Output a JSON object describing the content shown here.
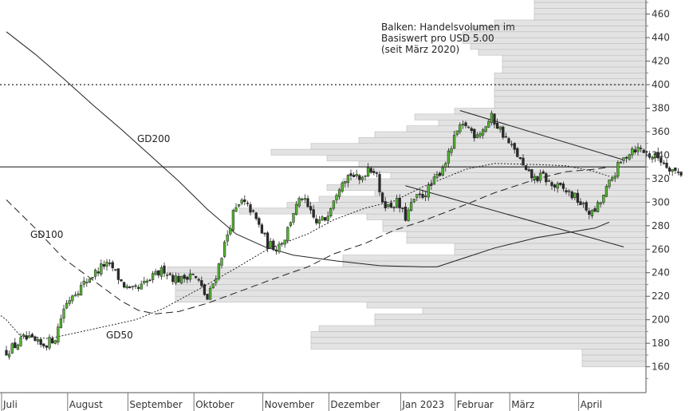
{
  "chart_data": {
    "type": "candlestick",
    "annotation_lines": [
      "Balken: Handelsvolumen im",
      "Basiswert pro USD 5.00",
      "(seit März 2020)"
    ],
    "y_axis": {
      "ticks": [
        160,
        180,
        200,
        220,
        240,
        260,
        280,
        300,
        320,
        340,
        360,
        380,
        400,
        420,
        440,
        460
      ],
      "side": "right",
      "ylim": [
        138,
        472
      ]
    },
    "x_axis": {
      "months": [
        "Juli",
        "August",
        "September",
        "Oktober",
        "November",
        "Dezember",
        "Jan 2023",
        "Februar",
        "März",
        "April"
      ],
      "month_start_days": [
        0,
        23,
        44,
        67,
        91,
        114,
        139,
        158,
        177,
        201
      ],
      "total_days": 215
    },
    "colors": {
      "up": "#55b531",
      "down": "#2b2b2b",
      "volume": "#e3e3e3",
      "volume_edge": "#bcbcbc",
      "line": "#222222"
    },
    "volume_profile": {
      "bucket_size": 5,
      "buckets": [
        [
          160,
          80
        ],
        [
          165,
          80
        ],
        [
          170,
          80
        ],
        [
          175,
          420
        ],
        [
          180,
          420
        ],
        [
          185,
          420
        ],
        [
          190,
          410
        ],
        [
          195,
          340
        ],
        [
          200,
          340
        ],
        [
          205,
          280
        ],
        [
          210,
          350
        ],
        [
          215,
          590
        ],
        [
          220,
          590
        ],
        [
          225,
          590
        ],
        [
          230,
          590
        ],
        [
          235,
          590
        ],
        [
          240,
          600
        ],
        [
          245,
          380
        ],
        [
          250,
          380
        ],
        [
          255,
          240
        ],
        [
          260,
          240
        ],
        [
          265,
          300
        ],
        [
          270,
          300
        ],
        [
          275,
          330
        ],
        [
          280,
          330
        ],
        [
          285,
          350
        ],
        [
          290,
          510
        ],
        [
          295,
          450
        ],
        [
          300,
          410
        ],
        [
          305,
          340
        ],
        [
          310,
          400
        ],
        [
          315,
          380
        ],
        [
          320,
          320
        ],
        [
          325,
          350
        ],
        [
          330,
          360
        ],
        [
          335,
          400
        ],
        [
          340,
          470
        ],
        [
          345,
          420
        ],
        [
          350,
          360
        ],
        [
          355,
          340
        ],
        [
          360,
          300
        ],
        [
          365,
          260
        ],
        [
          370,
          290
        ],
        [
          375,
          240
        ],
        [
          380,
          190
        ],
        [
          385,
          190
        ],
        [
          390,
          190
        ],
        [
          395,
          190
        ],
        [
          400,
          190
        ],
        [
          405,
          190
        ],
        [
          410,
          180
        ],
        [
          415,
          180
        ],
        [
          420,
          180
        ],
        [
          425,
          210
        ],
        [
          430,
          220
        ],
        [
          435,
          230
        ],
        [
          440,
          230
        ],
        [
          445,
          220
        ],
        [
          450,
          190
        ],
        [
          455,
          140
        ],
        [
          460,
          140
        ],
        [
          465,
          140
        ],
        [
          470,
          140
        ]
      ]
    },
    "reference_lines": [
      {
        "type": "dotted",
        "y": 400
      },
      {
        "type": "solid",
        "y": 330
      }
    ],
    "trend_lines": [
      {
        "from": [
          158,
          378
        ],
        "to": [
          215,
          336
        ]
      },
      {
        "from": [
          139,
          314
        ],
        "to": [
          215,
          262
        ]
      }
    ],
    "moving_averages": [
      {
        "name": "GD50",
        "style": "dotted",
        "points": [
          [
            -10,
            218
          ],
          [
            0,
            200
          ],
          [
            5,
            186
          ],
          [
            15,
            184
          ],
          [
            30,
            192
          ],
          [
            45,
            200
          ],
          [
            55,
            210
          ],
          [
            67,
            226
          ],
          [
            80,
            244
          ],
          [
            91,
            260
          ],
          [
            105,
            273
          ],
          [
            114,
            285
          ],
          [
            125,
            295
          ],
          [
            135,
            301
          ],
          [
            145,
            313
          ],
          [
            160,
            328
          ],
          [
            170,
            333
          ],
          [
            185,
            332
          ],
          [
            195,
            331
          ],
          [
            205,
            326
          ],
          [
            210,
            322
          ]
        ]
      },
      {
        "name": "GD100",
        "style": "dashed",
        "points": [
          [
            0,
            302
          ],
          [
            10,
            278
          ],
          [
            20,
            252
          ],
          [
            30,
            234
          ],
          [
            40,
            216
          ],
          [
            46,
            208
          ],
          [
            52,
            205
          ],
          [
            60,
            207
          ],
          [
            70,
            214
          ],
          [
            80,
            223
          ],
          [
            91,
            233
          ],
          [
            105,
            245
          ],
          [
            114,
            256
          ],
          [
            125,
            265
          ],
          [
            135,
            276
          ],
          [
            145,
            284
          ],
          [
            160,
            298
          ],
          [
            170,
            308
          ],
          [
            185,
            320
          ],
          [
            195,
            326
          ],
          [
            205,
            328
          ],
          [
            210,
            330
          ]
        ]
      },
      {
        "name": "GD200",
        "style": "solid",
        "points": [
          [
            0,
            445
          ],
          [
            10,
            426
          ],
          [
            20,
            405
          ],
          [
            30,
            383
          ],
          [
            40,
            362
          ],
          [
            50,
            340
          ],
          [
            60,
            318
          ],
          [
            70,
            294
          ],
          [
            80,
            273
          ],
          [
            90,
            262
          ],
          [
            100,
            255
          ],
          [
            115,
            250
          ],
          [
            130,
            246
          ],
          [
            145,
            245
          ],
          [
            150,
            245
          ],
          [
            160,
            253
          ],
          [
            170,
            261
          ],
          [
            185,
            270
          ],
          [
            195,
            274
          ],
          [
            205,
            278
          ],
          [
            210,
            283
          ]
        ]
      }
    ],
    "price_path": [
      [
        0,
        173
      ],
      [
        3,
        178
      ],
      [
        6,
        184
      ],
      [
        9,
        182
      ],
      [
        12,
        178
      ],
      [
        14,
        180
      ],
      [
        17,
        185
      ],
      [
        20,
        210
      ],
      [
        23,
        222
      ],
      [
        26,
        228
      ],
      [
        29,
        236
      ],
      [
        31,
        240
      ],
      [
        34,
        247
      ],
      [
        37,
        244
      ],
      [
        40,
        232
      ],
      [
        43,
        224
      ],
      [
        46,
        226
      ],
      [
        49,
        232
      ],
      [
        52,
        238
      ],
      [
        55,
        243
      ],
      [
        58,
        236
      ],
      [
        61,
        234
      ],
      [
        64,
        240
      ],
      [
        67,
        232
      ],
      [
        70,
        217
      ],
      [
        73,
        238
      ],
      [
        76,
        264
      ],
      [
        79,
        290
      ],
      [
        82,
        300
      ],
      [
        85,
        294
      ],
      [
        88,
        280
      ],
      [
        91,
        264
      ],
      [
        94,
        262
      ],
      [
        97,
        270
      ],
      [
        100,
        292
      ],
      [
        103,
        304
      ],
      [
        106,
        290
      ],
      [
        108,
        282
      ],
      [
        111,
        286
      ],
      [
        114,
        304
      ],
      [
        117,
        320
      ],
      [
        120,
        324
      ],
      [
        123,
        318
      ],
      [
        126,
        330
      ],
      [
        129,
        326
      ],
      [
        130,
        305
      ],
      [
        133,
        296
      ],
      [
        136,
        300
      ],
      [
        139,
        287
      ],
      [
        142,
        302
      ],
      [
        145,
        306
      ],
      [
        148,
        314
      ],
      [
        151,
        326
      ],
      [
        154,
        340
      ],
      [
        157,
        360
      ],
      [
        160,
        366
      ],
      [
        163,
        358
      ],
      [
        166,
        362
      ],
      [
        169,
        372
      ],
      [
        172,
        362
      ],
      [
        175,
        350
      ],
      [
        178,
        340
      ],
      [
        181,
        325
      ],
      [
        184,
        320
      ],
      [
        187,
        322
      ],
      [
        190,
        314
      ],
      [
        193,
        312
      ],
      [
        196,
        308
      ],
      [
        199,
        302
      ],
      [
        201,
        296
      ],
      [
        204,
        290
      ],
      [
        207,
        300
      ],
      [
        210,
        316
      ],
      [
        213,
        330
      ],
      [
        216,
        340
      ],
      [
        218,
        346
      ],
      [
        221,
        345
      ],
      [
        224,
        340
      ],
      [
        227,
        338
      ],
      [
        230,
        332
      ],
      [
        233,
        326
      ],
      [
        235,
        325
      ]
    ],
    "legend": [
      "GD200",
      "GD100",
      "GD50"
    ]
  }
}
